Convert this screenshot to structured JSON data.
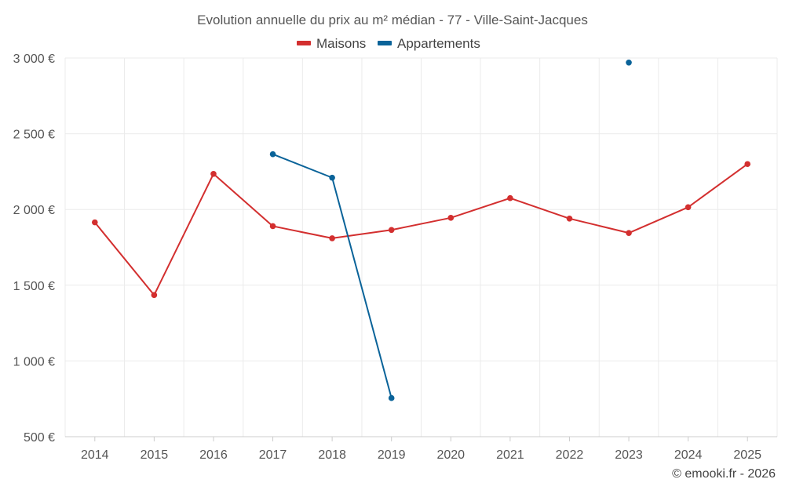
{
  "chart_data": {
    "type": "line",
    "title": "Evolution annuelle du prix au m² médian - 77 - Ville-Saint-Jacques",
    "categories": [
      "2014",
      "2015",
      "2016",
      "2017",
      "2018",
      "2019",
      "2020",
      "2021",
      "2022",
      "2023",
      "2024",
      "2025"
    ],
    "y_ticks": [
      500,
      1000,
      1500,
      2000,
      2500,
      3000
    ],
    "y_tick_labels": [
      "500 €",
      "1 000 €",
      "1 500 €",
      "2 000 €",
      "2 500 €",
      "3 000 €"
    ],
    "ylim": [
      500,
      3000
    ],
    "grid": true,
    "legend_position": "top-center",
    "series": [
      {
        "name": "Maisons",
        "color": "#d32f2f",
        "values": [
          1915,
          1435,
          2235,
          1890,
          1810,
          1865,
          1945,
          2075,
          1940,
          1845,
          2015,
          2300
        ]
      },
      {
        "name": "Appartements",
        "color": "#0a6399",
        "values": [
          null,
          null,
          null,
          2365,
          2210,
          755,
          null,
          null,
          null,
          2970,
          null,
          null
        ]
      }
    ]
  },
  "credit": "© emooki.fr - 2026"
}
